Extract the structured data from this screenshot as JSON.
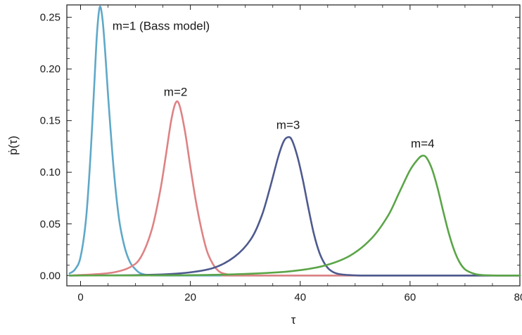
{
  "chart_data": {
    "type": "line",
    "title": "",
    "xlabel": "τ",
    "ylabel": "ṗ(τ)",
    "xlim": [
      -2.5,
      80
    ],
    "ylim": [
      -0.01,
      0.262
    ],
    "grid": false,
    "legend": "none",
    "x_ticks": [
      {
        "value": 0,
        "label": "0"
      },
      {
        "value": 20,
        "label": "20"
      },
      {
        "value": 40,
        "label": "40"
      },
      {
        "value": 60,
        "label": "60"
      },
      {
        "value": 80,
        "label": "80"
      }
    ],
    "y_ticks": [
      {
        "value": 0.0,
        "label": "0.00"
      },
      {
        "value": 0.05,
        "label": "0.05"
      },
      {
        "value": 0.1,
        "label": "0.10"
      },
      {
        "value": 0.15,
        "label": "0.15"
      },
      {
        "value": 0.2,
        "label": "0.20"
      },
      {
        "value": 0.25,
        "label": "0.25"
      }
    ],
    "series": [
      {
        "label": "m=1 (Bass model)",
        "color": "#5fa8c8",
        "points": [
          [
            -2,
            0.002
          ],
          [
            -1,
            0.006
          ],
          [
            0,
            0.018
          ],
          [
            1,
            0.055
          ],
          [
            1.8,
            0.115
          ],
          [
            2.5,
            0.185
          ],
          [
            3,
            0.235
          ],
          [
            3.5,
            0.26
          ],
          [
            4,
            0.248
          ],
          [
            4.5,
            0.215
          ],
          [
            5,
            0.175
          ],
          [
            6,
            0.105
          ],
          [
            7,
            0.055
          ],
          [
            8,
            0.028
          ],
          [
            9,
            0.013
          ],
          [
            10,
            0.006
          ],
          [
            11,
            0.002
          ],
          [
            13,
            0.0003
          ],
          [
            20,
            0.0
          ],
          [
            80,
            0.0
          ]
        ]
      },
      {
        "label": "m=2",
        "color": "#de8284",
        "points": [
          [
            -2,
            0.0
          ],
          [
            2,
            0.001
          ],
          [
            6,
            0.003
          ],
          [
            9,
            0.008
          ],
          [
            11,
            0.018
          ],
          [
            13,
            0.045
          ],
          [
            14.5,
            0.082
          ],
          [
            15.5,
            0.115
          ],
          [
            16.5,
            0.15
          ],
          [
            17.3,
            0.167
          ],
          [
            18,
            0.165
          ],
          [
            19,
            0.14
          ],
          [
            20,
            0.105
          ],
          [
            21,
            0.072
          ],
          [
            22,
            0.045
          ],
          [
            23,
            0.024
          ],
          [
            24,
            0.012
          ],
          [
            25,
            0.005
          ],
          [
            26,
            0.002
          ],
          [
            28,
            0.0003
          ],
          [
            30,
            0.0
          ],
          [
            80,
            0.0
          ]
        ]
      },
      {
        "label": "m=3",
        "color": "#4e5a8e",
        "points": [
          [
            -2,
            0.0
          ],
          [
            10,
            0.0003
          ],
          [
            18,
            0.002
          ],
          [
            24,
            0.007
          ],
          [
            28,
            0.018
          ],
          [
            31,
            0.035
          ],
          [
            33,
            0.058
          ],
          [
            34.5,
            0.085
          ],
          [
            36,
            0.115
          ],
          [
            37,
            0.13
          ],
          [
            37.8,
            0.134
          ],
          [
            38.5,
            0.131
          ],
          [
            39.5,
            0.115
          ],
          [
            40.5,
            0.092
          ],
          [
            41.5,
            0.065
          ],
          [
            42.5,
            0.04
          ],
          [
            43.5,
            0.022
          ],
          [
            44.5,
            0.011
          ],
          [
            45.5,
            0.005
          ],
          [
            47,
            0.0015
          ],
          [
            50,
            0.0002
          ],
          [
            55,
            0.0
          ],
          [
            80,
            0.0
          ]
        ]
      },
      {
        "label": "m=4",
        "color": "#5aa547",
        "points": [
          [
            -2,
            0.0
          ],
          [
            20,
            0.0003
          ],
          [
            30,
            0.0015
          ],
          [
            38,
            0.004
          ],
          [
            44,
            0.009
          ],
          [
            49,
            0.019
          ],
          [
            53,
            0.036
          ],
          [
            56,
            0.058
          ],
          [
            58,
            0.08
          ],
          [
            60,
            0.102
          ],
          [
            61.5,
            0.113
          ],
          [
            62.3,
            0.116
          ],
          [
            63,
            0.114
          ],
          [
            64,
            0.103
          ],
          [
            65,
            0.085
          ],
          [
            66,
            0.063
          ],
          [
            67,
            0.042
          ],
          [
            68,
            0.025
          ],
          [
            69,
            0.013
          ],
          [
            70,
            0.006
          ],
          [
            71.5,
            0.002
          ],
          [
            73,
            0.0005
          ],
          [
            76,
            0.0
          ],
          [
            80,
            0.0
          ]
        ]
      }
    ],
    "annotations": [
      {
        "text": "m=1 (Bass model)",
        "x": 5.8,
        "y": 0.238
      },
      {
        "text": "m=2",
        "x": 17.3,
        "y": 0.174
      },
      {
        "text": "m=3",
        "x": 37.8,
        "y": 0.142
      },
      {
        "text": "m=4",
        "x": 62.3,
        "y": 0.124
      }
    ]
  }
}
